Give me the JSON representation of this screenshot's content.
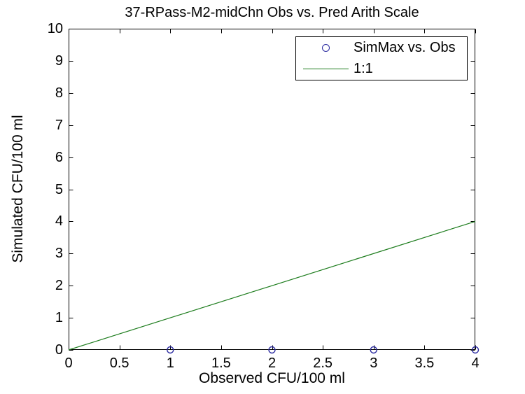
{
  "figure": {
    "background": "#ffffff",
    "axis_color": "#000000"
  },
  "chart_data": {
    "type": "scatter",
    "title": "37-RPass-M2-midChn Obs vs. Pred Arith Scale",
    "xlabel": "Observed CFU/100 ml",
    "ylabel": "Simulated CFU/100 ml",
    "xlim": [
      0,
      4
    ],
    "ylim": [
      0,
      10
    ],
    "xticks": [
      0,
      0.5,
      1,
      1.5,
      2,
      2.5,
      3,
      3.5,
      4
    ],
    "yticks": [
      0,
      1,
      2,
      3,
      4,
      5,
      6,
      7,
      8,
      9,
      10
    ],
    "grid": false,
    "box": true,
    "tick_direction": "in",
    "series": [
      {
        "name": "SimMax vs. Obs",
        "type": "scatter",
        "marker": "circle",
        "color": "#2A2AA0",
        "points": [
          [
            1,
            0
          ],
          [
            2,
            0
          ],
          [
            3,
            0
          ],
          [
            4,
            0
          ]
        ]
      },
      {
        "name": "1:1",
        "type": "line",
        "color": "#1E7D1E",
        "points": [
          [
            0,
            0
          ],
          [
            4,
            4
          ]
        ]
      }
    ],
    "legend": {
      "position": "top-right",
      "entries": [
        {
          "label": "SimMax vs. Obs",
          "marker": "circle",
          "color": "#2A2AA0"
        },
        {
          "label": "1:1",
          "marker": "line",
          "color": "#1E7D1E"
        }
      ]
    }
  }
}
